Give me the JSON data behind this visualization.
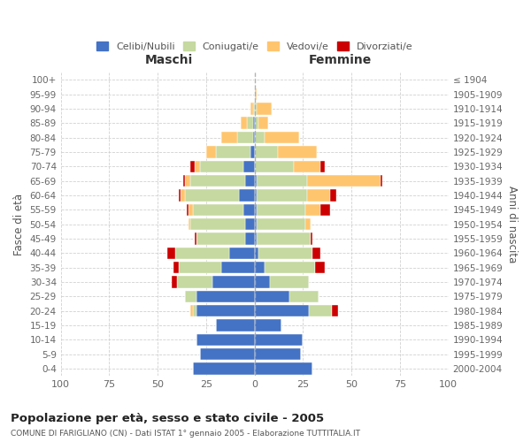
{
  "age_groups": [
    "100+",
    "95-99",
    "90-94",
    "85-89",
    "80-84",
    "75-79",
    "70-74",
    "65-69",
    "60-64",
    "55-59",
    "50-54",
    "45-49",
    "40-44",
    "35-39",
    "30-34",
    "25-29",
    "20-24",
    "15-19",
    "10-14",
    "5-9",
    "0-4"
  ],
  "birth_years": [
    "≤ 1904",
    "1905-1909",
    "1910-1914",
    "1915-1919",
    "1920-1924",
    "1925-1929",
    "1930-1934",
    "1935-1939",
    "1940-1944",
    "1945-1949",
    "1950-1954",
    "1955-1959",
    "1960-1964",
    "1965-1969",
    "1970-1974",
    "1975-1979",
    "1980-1984",
    "1985-1989",
    "1990-1994",
    "1995-1999",
    "2000-2004"
  ],
  "maschi": {
    "celibi": [
      0,
      0,
      0,
      1,
      1,
      2,
      6,
      5,
      8,
      6,
      5,
      5,
      13,
      17,
      22,
      30,
      30,
      20,
      30,
      28,
      32
    ],
    "coniugati": [
      0,
      0,
      1,
      3,
      8,
      18,
      22,
      28,
      28,
      26,
      28,
      25,
      28,
      22,
      18,
      6,
      2,
      0,
      0,
      0,
      0
    ],
    "vedovi": [
      0,
      0,
      1,
      3,
      8,
      5,
      3,
      3,
      2,
      2,
      1,
      0,
      0,
      0,
      0,
      0,
      1,
      0,
      0,
      0,
      0
    ],
    "divorziati": [
      0,
      0,
      0,
      0,
      0,
      0,
      2,
      1,
      1,
      1,
      0,
      1,
      4,
      3,
      3,
      0,
      0,
      0,
      0,
      0,
      0
    ]
  },
  "femmine": {
    "nubili": [
      0,
      0,
      0,
      0,
      0,
      0,
      0,
      1,
      1,
      1,
      1,
      1,
      2,
      5,
      8,
      18,
      28,
      14,
      25,
      24,
      30
    ],
    "coniugate": [
      0,
      0,
      1,
      2,
      5,
      12,
      20,
      26,
      26,
      25,
      25,
      28,
      28,
      26,
      20,
      15,
      12,
      0,
      0,
      0,
      0
    ],
    "vedove": [
      0,
      1,
      8,
      5,
      18,
      20,
      14,
      38,
      12,
      8,
      3,
      0,
      0,
      0,
      0,
      0,
      0,
      0,
      0,
      0,
      0
    ],
    "divorziate": [
      0,
      0,
      0,
      0,
      0,
      0,
      2,
      1,
      3,
      5,
      0,
      1,
      4,
      5,
      0,
      0,
      3,
      0,
      0,
      0,
      0
    ]
  },
  "colors": {
    "celibi": "#4472c4",
    "coniugati": "#c5d9a0",
    "vedovi": "#ffc56e",
    "divorziati": "#cc0000"
  },
  "xlim": 100,
  "title": "Popolazione per età, sesso e stato civile - 2005",
  "subtitle": "COMUNE DI FARIGLIANO (CN) - Dati ISTAT 1° gennaio 2005 - Elaborazione TUTTITALIA.IT",
  "xlabel_left": "Maschi",
  "xlabel_right": "Femmine",
  "ylabel_left": "Fasce di età",
  "ylabel_right": "Anni di nascita",
  "bg_color": "#ffffff",
  "grid_color": "#cccccc"
}
